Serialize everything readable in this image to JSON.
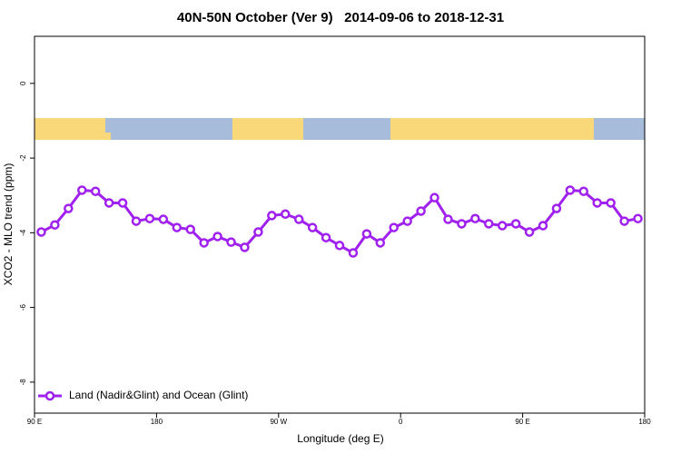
{
  "chart_data": {
    "type": "line",
    "title": "40N-50N October (Ver 9)   2014-09-06 to 2018-12-31",
    "x_label": "Longitude (deg E)",
    "y_label": "XCO2 - MLO trend (ppm)",
    "x": [
      95,
      105,
      115,
      125,
      135,
      145,
      155,
      165,
      175,
      185,
      195,
      205,
      215,
      225,
      235,
      245,
      255,
      265,
      275,
      285,
      295,
      305,
      315,
      325,
      335,
      345,
      355,
      365,
      375,
      385,
      395,
      405,
      415,
      425,
      435,
      445,
      455,
      465,
      475,
      485,
      495,
      505,
      515,
      525,
      535
    ],
    "series": [
      {
        "name": "Land (Nadir&Glint) and Ocean (Glint)",
        "color": "#a020f0",
        "values": [
          -3.98,
          -3.79,
          -3.35,
          -2.86,
          -2.89,
          -3.2,
          -3.2,
          -3.69,
          -3.62,
          -3.64,
          -3.86,
          -3.91,
          -4.27,
          -4.1,
          -4.25,
          -4.39,
          -3.98,
          -3.54,
          -3.5,
          -3.64,
          -3.86,
          -4.13,
          -4.34,
          -4.54,
          -4.03,
          -4.27,
          -3.86,
          -3.69,
          -3.42,
          -3.06,
          -3.64,
          -3.76,
          -3.62,
          -3.76,
          -3.81,
          -3.76,
          -3.98,
          -3.81,
          -3.35,
          -2.86,
          -2.89,
          -3.2,
          -3.2,
          -3.69,
          -3.62
        ]
      }
    ],
    "xlim": [
      90,
      540
    ],
    "xticks": [
      {
        "value": 90,
        "label": "90 E"
      },
      {
        "value": 180,
        "label": "180"
      },
      {
        "value": 270,
        "label": "90 W"
      },
      {
        "value": 360,
        "label": "0"
      },
      {
        "value": 450,
        "label": "90 E"
      },
      {
        "value": 540,
        "label": "180"
      }
    ],
    "ylim": [
      -8.83,
      1.26
    ],
    "yticks": [
      0,
      -2,
      -4,
      -6,
      -8
    ],
    "legend": "bottom-left"
  }
}
